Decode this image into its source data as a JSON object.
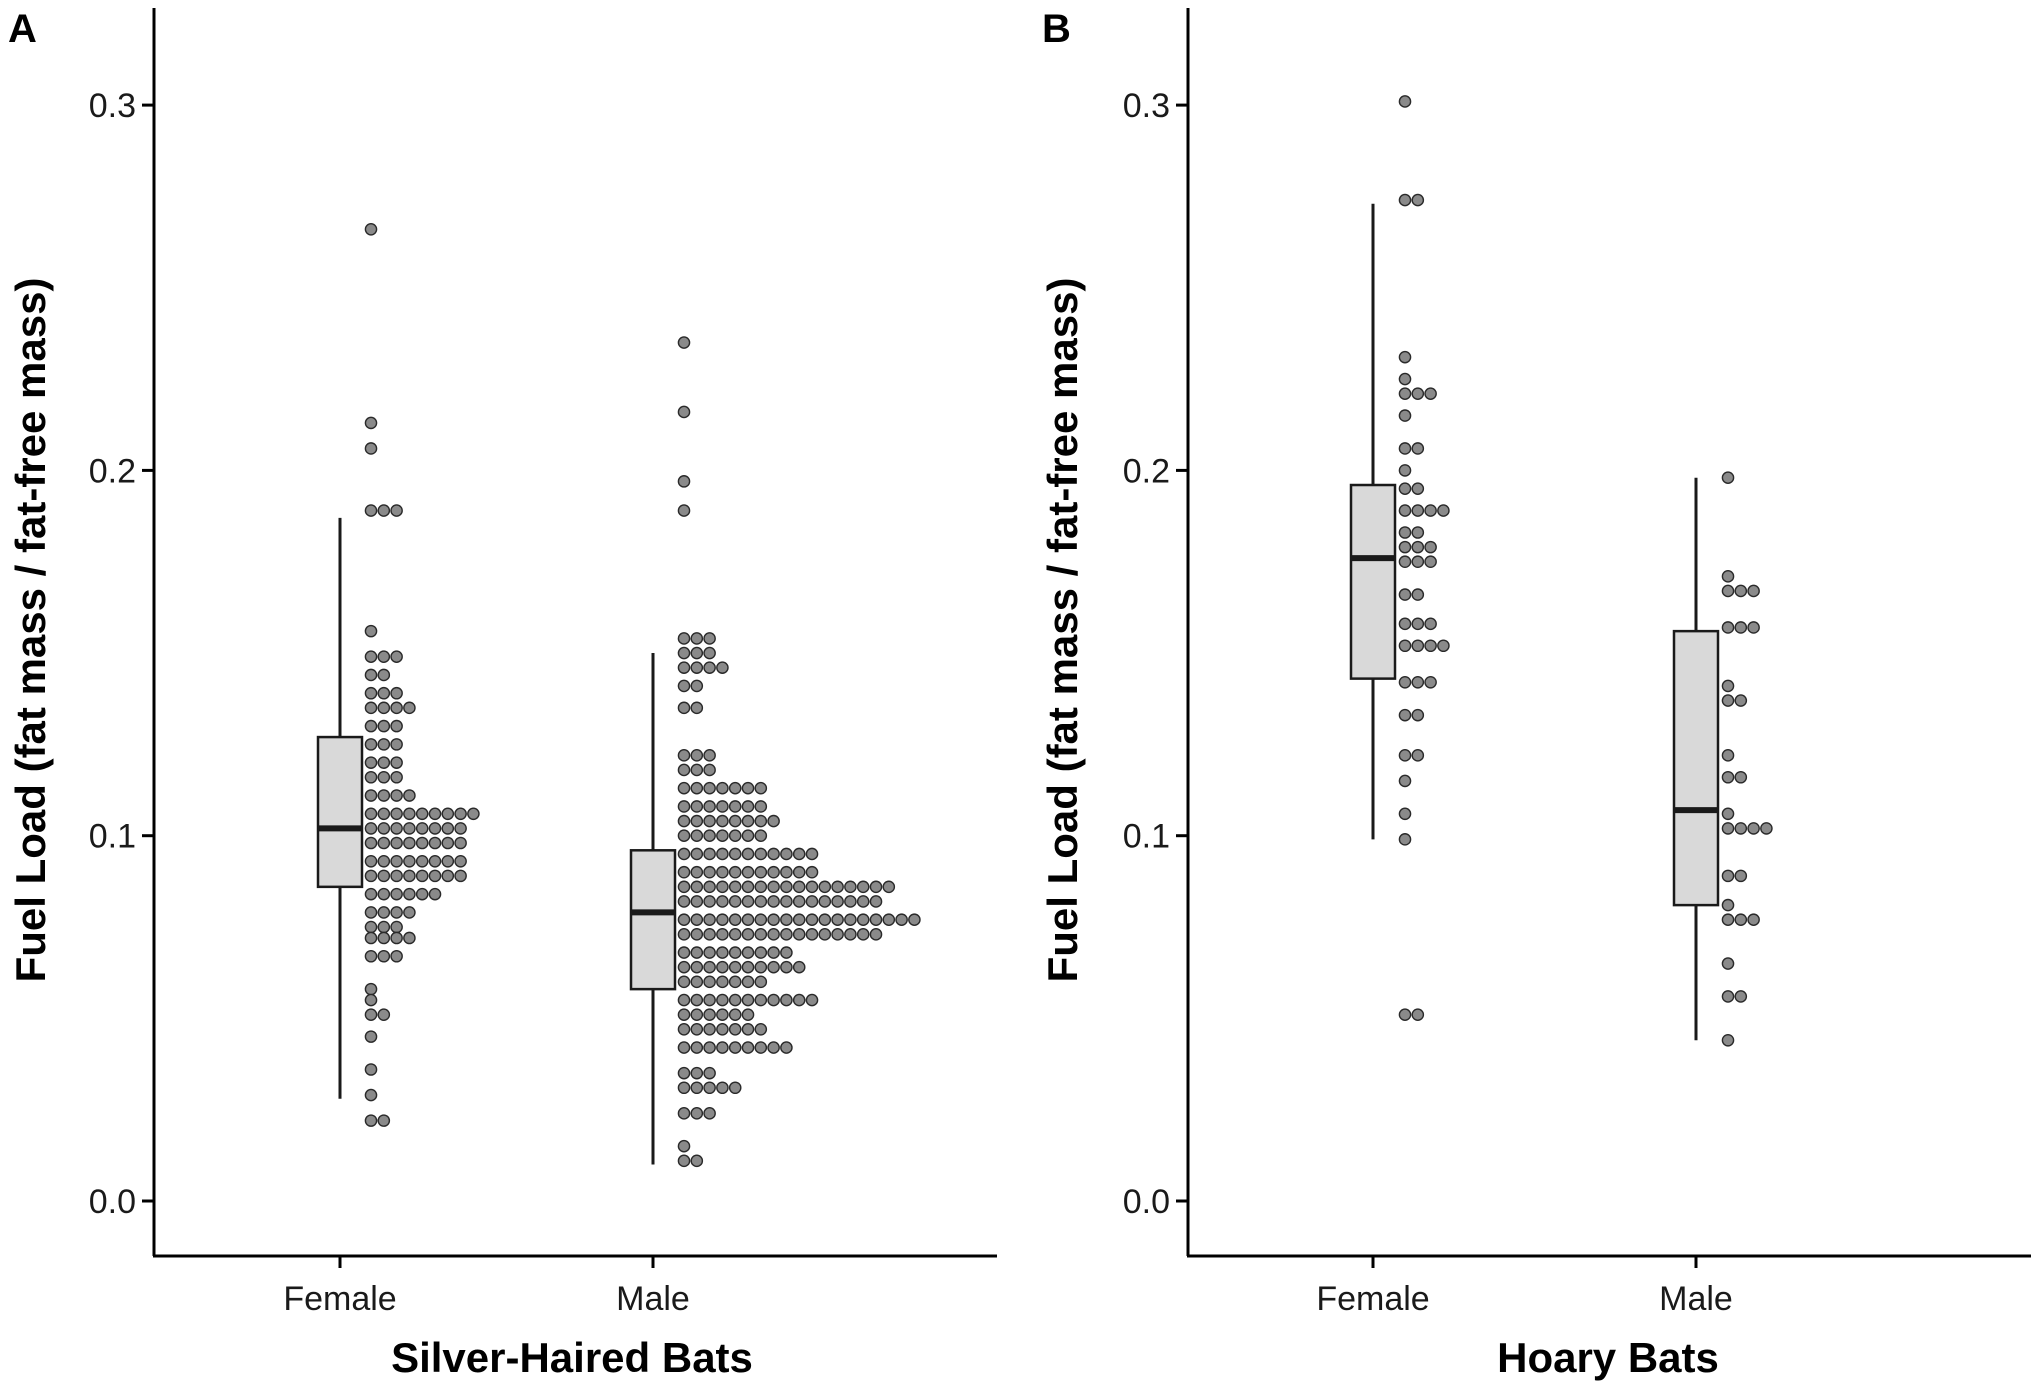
{
  "colors": {
    "box_fill": "#d9d9d9",
    "box_stroke": "#1a1a1a",
    "dot_fill": "#8a8a8a",
    "dot_stroke": "#2a2a2a",
    "axis": "#000000"
  },
  "chart_data": [
    {
      "type": "boxplot-dotplot",
      "panel_label": "A",
      "title": "",
      "xlabel": "Silver-Haired Bats",
      "ylabel": "Fuel Load (fat mass / fat-free mass)",
      "ylim": [
        -0.015,
        0.326
      ],
      "yticks": [
        0.0,
        0.1,
        0.2,
        0.3
      ],
      "ytick_labels": [
        "0.0",
        "0.1",
        "0.2",
        "0.3"
      ],
      "categories": [
        "Female",
        "Male"
      ],
      "boxes": [
        {
          "group": "Female",
          "whisker_low": 0.028,
          "q1": 0.086,
          "median": 0.102,
          "q3": 0.127,
          "whisker_high": 0.187
        },
        {
          "group": "Male",
          "whisker_low": 0.01,
          "q1": 0.058,
          "median": 0.079,
          "q3": 0.096,
          "whisker_high": 0.15
        }
      ],
      "dot_bins": [
        {
          "group": "Female",
          "bins": [
            {
              "y": 0.266,
              "count": 1
            },
            {
              "y": 0.213,
              "count": 1
            },
            {
              "y": 0.206,
              "count": 1
            },
            {
              "y": 0.189,
              "count": 3
            },
            {
              "y": 0.156,
              "count": 1
            },
            {
              "y": 0.149,
              "count": 3
            },
            {
              "y": 0.144,
              "count": 2
            },
            {
              "y": 0.139,
              "count": 3
            },
            {
              "y": 0.135,
              "count": 4
            },
            {
              "y": 0.13,
              "count": 3
            },
            {
              "y": 0.125,
              "count": 3
            },
            {
              "y": 0.12,
              "count": 3
            },
            {
              "y": 0.116,
              "count": 3
            },
            {
              "y": 0.111,
              "count": 4
            },
            {
              "y": 0.106,
              "count": 9
            },
            {
              "y": 0.102,
              "count": 8
            },
            {
              "y": 0.098,
              "count": 8
            },
            {
              "y": 0.093,
              "count": 8
            },
            {
              "y": 0.089,
              "count": 8
            },
            {
              "y": 0.084,
              "count": 6
            },
            {
              "y": 0.079,
              "count": 4
            },
            {
              "y": 0.075,
              "count": 3
            },
            {
              "y": 0.072,
              "count": 4
            },
            {
              "y": 0.067,
              "count": 3
            },
            {
              "y": 0.058,
              "count": 1
            },
            {
              "y": 0.055,
              "count": 1
            },
            {
              "y": 0.051,
              "count": 2
            },
            {
              "y": 0.045,
              "count": 1
            },
            {
              "y": 0.036,
              "count": 1
            },
            {
              "y": 0.029,
              "count": 1
            },
            {
              "y": 0.022,
              "count": 2
            }
          ]
        },
        {
          "group": "Male",
          "bins": [
            {
              "y": 0.235,
              "count": 1
            },
            {
              "y": 0.216,
              "count": 1
            },
            {
              "y": 0.197,
              "count": 1
            },
            {
              "y": 0.189,
              "count": 1
            },
            {
              "y": 0.154,
              "count": 3
            },
            {
              "y": 0.15,
              "count": 3
            },
            {
              "y": 0.146,
              "count": 4
            },
            {
              "y": 0.141,
              "count": 2
            },
            {
              "y": 0.135,
              "count": 2
            },
            {
              "y": 0.122,
              "count": 3
            },
            {
              "y": 0.118,
              "count": 3
            },
            {
              "y": 0.113,
              "count": 7
            },
            {
              "y": 0.108,
              "count": 7
            },
            {
              "y": 0.104,
              "count": 8
            },
            {
              "y": 0.1,
              "count": 7
            },
            {
              "y": 0.095,
              "count": 11
            },
            {
              "y": 0.09,
              "count": 11
            },
            {
              "y": 0.086,
              "count": 17
            },
            {
              "y": 0.082,
              "count": 16
            },
            {
              "y": 0.077,
              "count": 19
            },
            {
              "y": 0.073,
              "count": 16
            },
            {
              "y": 0.068,
              "count": 9
            },
            {
              "y": 0.064,
              "count": 10
            },
            {
              "y": 0.06,
              "count": 7
            },
            {
              "y": 0.055,
              "count": 11
            },
            {
              "y": 0.051,
              "count": 6
            },
            {
              "y": 0.047,
              "count": 7
            },
            {
              "y": 0.042,
              "count": 9
            },
            {
              "y": 0.035,
              "count": 3
            },
            {
              "y": 0.031,
              "count": 5
            },
            {
              "y": 0.024,
              "count": 3
            },
            {
              "y": 0.015,
              "count": 1
            },
            {
              "y": 0.011,
              "count": 2
            }
          ]
        }
      ]
    },
    {
      "type": "boxplot-dotplot",
      "panel_label": "B",
      "title": "",
      "xlabel": "Hoary Bats",
      "ylabel": "Fuel Load (fat mass / fat-free mass)",
      "ylim": [
        -0.015,
        0.326
      ],
      "yticks": [
        0.0,
        0.1,
        0.2,
        0.3
      ],
      "ytick_labels": [
        "0.0",
        "0.1",
        "0.2",
        "0.3"
      ],
      "categories": [
        "Female",
        "Male"
      ],
      "boxes": [
        {
          "group": "Female",
          "whisker_low": 0.099,
          "q1": 0.143,
          "median": 0.176,
          "q3": 0.196,
          "whisker_high": 0.273
        },
        {
          "group": "Male",
          "whisker_low": 0.044,
          "q1": 0.081,
          "median": 0.107,
          "q3": 0.156,
          "whisker_high": 0.198
        }
      ],
      "dot_bins": [
        {
          "group": "Female",
          "bins": [
            {
              "y": 0.301,
              "count": 1
            },
            {
              "y": 0.274,
              "count": 2
            },
            {
              "y": 0.231,
              "count": 1
            },
            {
              "y": 0.225,
              "count": 1
            },
            {
              "y": 0.221,
              "count": 3
            },
            {
              "y": 0.215,
              "count": 1
            },
            {
              "y": 0.206,
              "count": 2
            },
            {
              "y": 0.2,
              "count": 1
            },
            {
              "y": 0.195,
              "count": 2
            },
            {
              "y": 0.189,
              "count": 4
            },
            {
              "y": 0.183,
              "count": 2
            },
            {
              "y": 0.179,
              "count": 3
            },
            {
              "y": 0.175,
              "count": 3
            },
            {
              "y": 0.166,
              "count": 2
            },
            {
              "y": 0.158,
              "count": 3
            },
            {
              "y": 0.152,
              "count": 4
            },
            {
              "y": 0.142,
              "count": 3
            },
            {
              "y": 0.133,
              "count": 2
            },
            {
              "y": 0.122,
              "count": 2
            },
            {
              "y": 0.115,
              "count": 1
            },
            {
              "y": 0.106,
              "count": 1
            },
            {
              "y": 0.099,
              "count": 1
            },
            {
              "y": 0.051,
              "count": 2
            }
          ]
        },
        {
          "group": "Male",
          "bins": [
            {
              "y": 0.198,
              "count": 1
            },
            {
              "y": 0.171,
              "count": 1
            },
            {
              "y": 0.167,
              "count": 3
            },
            {
              "y": 0.157,
              "count": 3
            },
            {
              "y": 0.141,
              "count": 1
            },
            {
              "y": 0.137,
              "count": 2
            },
            {
              "y": 0.122,
              "count": 1
            },
            {
              "y": 0.116,
              "count": 2
            },
            {
              "y": 0.106,
              "count": 1
            },
            {
              "y": 0.102,
              "count": 4
            },
            {
              "y": 0.089,
              "count": 2
            },
            {
              "y": 0.081,
              "count": 1
            },
            {
              "y": 0.077,
              "count": 3
            },
            {
              "y": 0.065,
              "count": 1
            },
            {
              "y": 0.056,
              "count": 2
            },
            {
              "y": 0.044,
              "count": 1
            }
          ]
        }
      ]
    }
  ]
}
